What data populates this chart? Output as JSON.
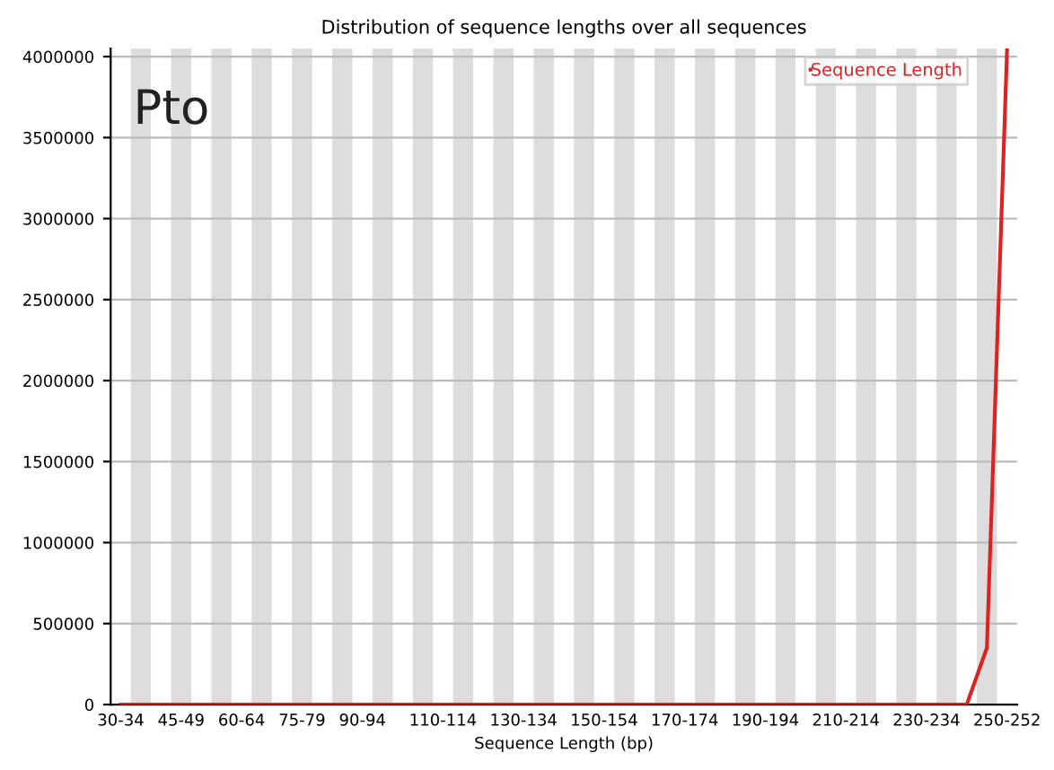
{
  "chart_data": {
    "type": "line",
    "title": "Distribution of sequence lengths over all sequences",
    "xlabel": "Sequence Length (bp)",
    "annotations": [
      "Pto"
    ],
    "categories": [
      "30-34",
      null,
      null,
      "45-49",
      null,
      null,
      "60-64",
      null,
      null,
      "75-79",
      null,
      null,
      "90-94",
      null,
      null,
      null,
      "110-114",
      null,
      null,
      null,
      "130-134",
      null,
      null,
      null,
      "150-154",
      null,
      null,
      null,
      "170-174",
      null,
      null,
      null,
      "190-194",
      null,
      null,
      null,
      "210-214",
      null,
      null,
      null,
      "230-234",
      null,
      null,
      null,
      "250-252"
    ],
    "series": [
      {
        "name": "Sequence Length",
        "color": "#dd2222",
        "values": [
          0,
          0,
          0,
          0,
          0,
          0,
          0,
          0,
          0,
          0,
          0,
          0,
          0,
          0,
          0,
          0,
          0,
          0,
          0,
          0,
          0,
          0,
          0,
          0,
          0,
          0,
          0,
          0,
          0,
          0,
          0,
          0,
          0,
          0,
          0,
          0,
          0,
          0,
          0,
          0,
          0,
          0,
          0,
          350000,
          4040000
        ]
      }
    ],
    "ylim": [
      0,
      4050000
    ],
    "yticks": [
      0,
      500000,
      1000000,
      1500000,
      2000000,
      2500000,
      3000000,
      3500000,
      4000000
    ],
    "grid": "y",
    "legend": "top right",
    "marker": "none",
    "line_style": "solid"
  }
}
